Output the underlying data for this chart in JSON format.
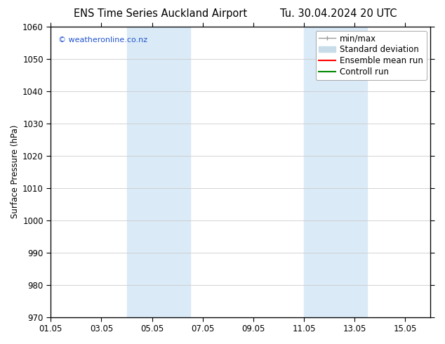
{
  "title": "ENS Time Series Auckland Airport",
  "title_date": "Tu. 30.04.2024 20 UTC",
  "ylabel": "Surface Pressure (hPa)",
  "ylim": [
    970,
    1060
  ],
  "yticks": [
    970,
    980,
    990,
    1000,
    1010,
    1020,
    1030,
    1040,
    1050,
    1060
  ],
  "xtick_labels": [
    "01.05",
    "03.05",
    "05.05",
    "07.05",
    "09.05",
    "11.05",
    "13.05",
    "15.05"
  ],
  "xtick_positions": [
    0,
    2,
    4,
    6,
    8,
    10,
    12,
    14
  ],
  "x_min": 0,
  "x_max": 15,
  "shaded_bands": [
    {
      "x_start": 3.0,
      "x_end": 4.0,
      "color": "#daeaf7"
    },
    {
      "x_start": 4.0,
      "x_end": 5.5,
      "color": "#daeaf7"
    },
    {
      "x_start": 10.0,
      "x_end": 11.0,
      "color": "#daeaf7"
    },
    {
      "x_start": 11.0,
      "x_end": 12.5,
      "color": "#daeaf7"
    }
  ],
  "watermark_text": "© weatheronline.co.nz",
  "watermark_color": "#2255cc",
  "legend_labels": [
    "min/max",
    "Standard deviation",
    "Ensemble mean run",
    "Controll run"
  ],
  "legend_colors": [
    "#aaaaaa",
    "#c8dcea",
    "#ff0000",
    "#008800"
  ],
  "bg_color": "#ffffff",
  "grid_color": "#cccccc",
  "font_size": 8.5,
  "title_font_size": 10.5
}
